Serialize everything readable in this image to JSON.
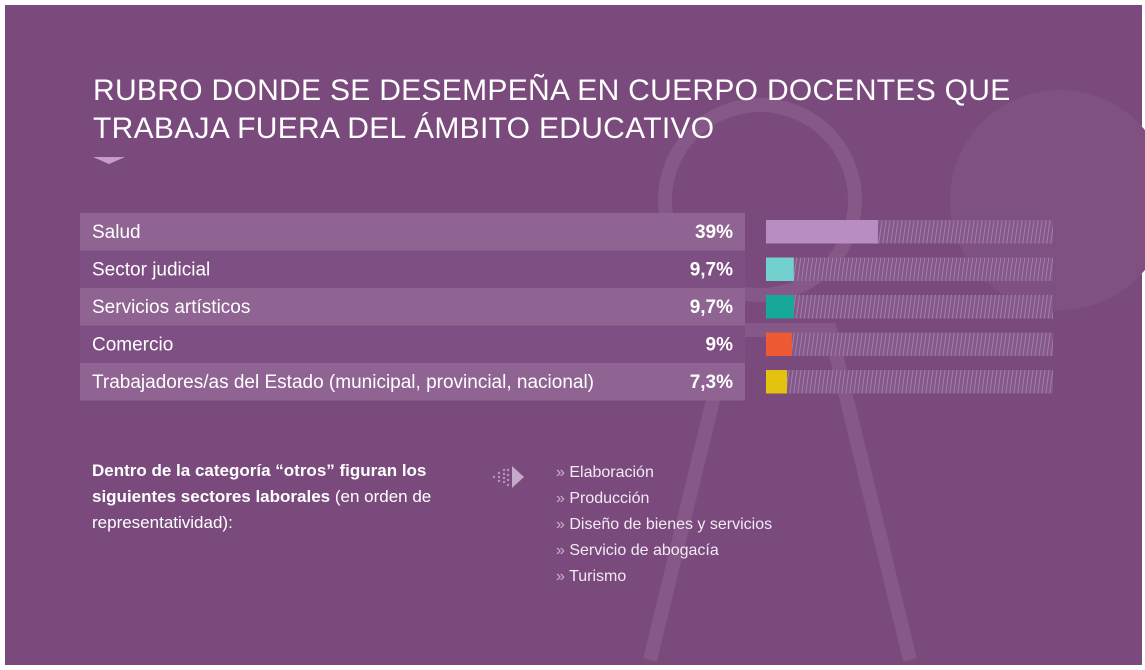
{
  "chart_data": {
    "type": "bar",
    "orientation": "horizontal",
    "title": "RUBRO DONDE SE DESEMPEÑA EN CUERPO DOCENTES QUE TRABAJA FUERA DEL ÁMBITO EDUCATIVO",
    "categories": [
      "Salud",
      "Sector judicial",
      "Servicios artísticos",
      "Comercio",
      "Trabajadores/as del Estado (municipal, provincial, nacional)"
    ],
    "values": [
      39,
      9.7,
      9.7,
      9,
      7.3
    ],
    "value_labels": [
      "39%",
      "9,7%",
      "9,7%",
      "9%",
      "7,3%"
    ],
    "colors": [
      "#b88dc2",
      "#72d0cf",
      "#16a898",
      "#ee5a34",
      "#e4c30f"
    ],
    "xlim": [
      0,
      100
    ]
  },
  "note": {
    "bold": "Dentro de la categoría “otros” figuran los siguientes sectores laborales",
    "text": " (en orden de representatividad):"
  },
  "others": [
    "Elaboración",
    "Producción",
    "Diseño de bienes y servicios",
    "Servicio de abogacía",
    "Turismo"
  ]
}
